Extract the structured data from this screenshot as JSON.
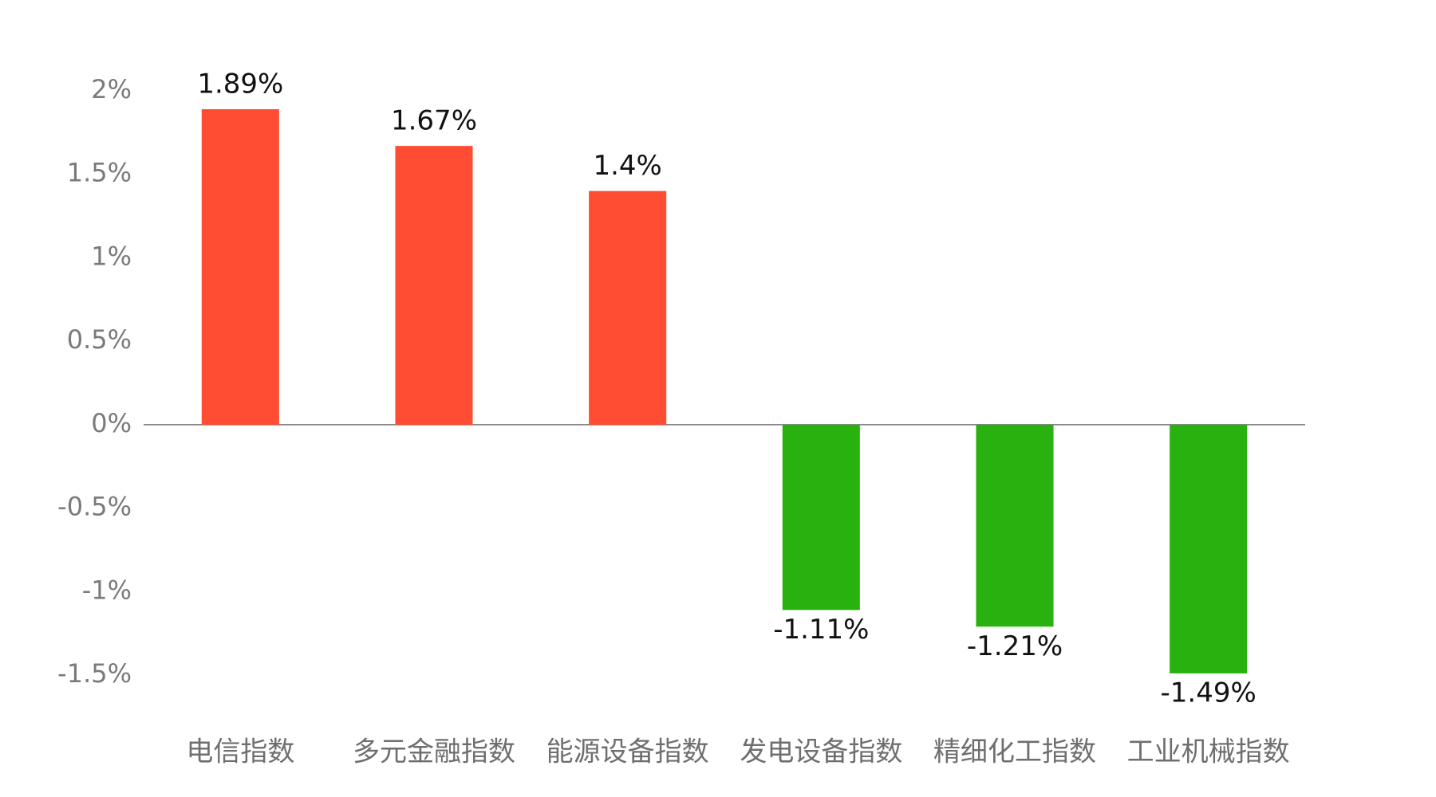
{
  "chart_data": {
    "type": "bar",
    "categories": [
      "电信指数",
      "多元金融指数",
      "能源设备指数",
      "发电设备指数",
      "精细化工指数",
      "工业机械指数"
    ],
    "values": [
      1.89,
      1.67,
      1.4,
      -1.11,
      -1.21,
      -1.49
    ],
    "value_labels": [
      "1.89%",
      "1.67%",
      "1.4%",
      "-1.11%",
      "-1.21%",
      "-1.49%"
    ],
    "positive_color": "#ff4d33",
    "negative_color": "#29b20f",
    "ylim": [
      -1.5,
      2
    ],
    "yticks": [
      {
        "value": 2,
        "label": "2%"
      },
      {
        "value": 1.5,
        "label": "1.5%"
      },
      {
        "value": 1,
        "label": "1%"
      },
      {
        "value": 0.5,
        "label": "0.5%"
      },
      {
        "value": 0,
        "label": "0%"
      },
      {
        "value": -0.5,
        "label": "-0.5%"
      },
      {
        "value": -1,
        "label": "-1%"
      },
      {
        "value": -1.5,
        "label": "-1.5%"
      }
    ],
    "grid": false
  }
}
